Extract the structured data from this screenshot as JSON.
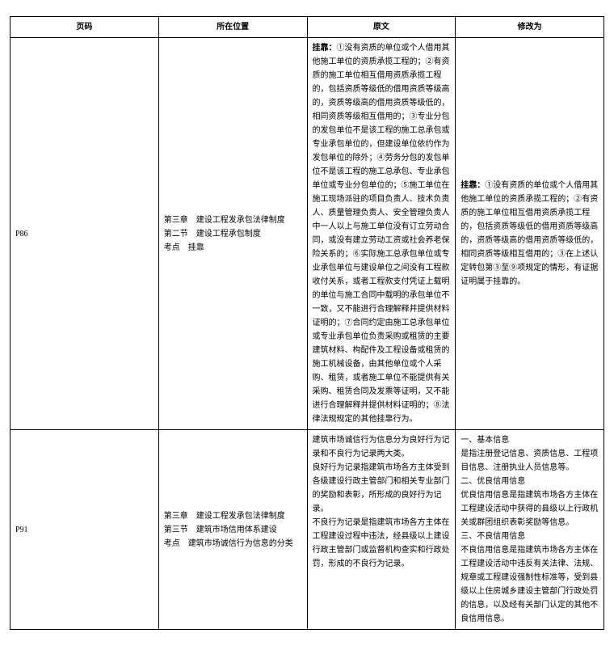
{
  "headers": {
    "page": "页码",
    "location": "所在位置",
    "original": "原文",
    "modified": "修改为"
  },
  "rows": [
    {
      "page": "P86",
      "location": "第三章　建设工程发承包法律制度\n第二节　建设工程承包制度\n考点　挂靠",
      "original_label": "挂靠：",
      "original_body": "①没有资质的单位或个人借用其他施工单位的资质承揽工程的；②有资质的施工单位相互借用资质承揽工程的，包括资质等级低的借用资质等级高的，资质等级高的借用资质等级低的，相同资质等级相互借用的；③专业分包的发包单位不是该工程的施工总承包或专业承包单位的，但建设单位依约作为发包单位的除外；④劳务分包的发包单位不是该工程的施工总承包、专业承包单位或专业分包单位的；⑤施工单位在施工现场派驻的项目负责人、技术负责人、质量管理负责人、安全管理负责人中一人以上与施工单位没有订立劳动合同，或没有建立劳动工资或社会养老保险关系的；⑥实际施工总承包单位或专业承包单位与建设单位之间没有工程款收付关系，或者工程款支付凭证上载明的单位与施工合同中载明的承包单位不一致，又不能进行合理解释并提供材料证明的；⑦合同约定由施工总承包单位或专业承包单位负责采购或租赁的主要建筑材料、构配件及工程设备或租赁的施工机械设备，由其他单位或个人采购、租赁，或者施工单位不能提供有关采购、租赁合同及发票等证明，又不能进行合理解释并提供材料证明的；⑧法律法规规定的其他挂靠行为。",
      "modified_label": "挂靠：",
      "modified_body": "①没有资质的单位或个人借用其他施工单位的资质承揽工程的；②有资质的施工单位相互借用资质承揽工程的，包括资质等级低的借用资质等级高的，资质等级高的借用资质等级低的，相同资质等级相互借用的；③在上述认定转包第③至⑨项规定的情形，有证据证明属于挂靠的。"
    },
    {
      "page": "P91",
      "location": "第三章　建设工程发承包法律制度\n第三节　建筑市场信用体系建设\n考点　建筑市场诚信行为信息的分类",
      "original_label": "",
      "original_body": "建筑市场诚信行为信息分为良好行为记录和不良行为记录两大类。\n良好行为记录指建筑市场各方主体受到各级建设行政主管部门和相关专业部门的奖励和表彰，所形成的良好行为记录。\n不良行为记录是指建筑市场各方主体在工程建设过程中违法，经县级以上建设行政主管部门或监督机构查实和行政处罚，形成的不良行为记录。",
      "modified_label": "",
      "modified_body": "一、基本信息\n是指注册登记信息、资质信息、工程项目信息、注册执业人员信息等。\n二、优良信用信息\n优良信用信息是指建筑市场各方主体在工程建设活动中获得的县级以上行政机关或群团组织表彰奖励等信息。\n三、不良信用信息\n不良信用信息是指建筑市场各方主体在工程建设活动中违反有关法律、法规、规章或工程建设强制性标准等，受到县级以上住房城乡建设主管部门行政处罚的信息，以及经有关部门认定的其他不良信用信息。"
    }
  ]
}
